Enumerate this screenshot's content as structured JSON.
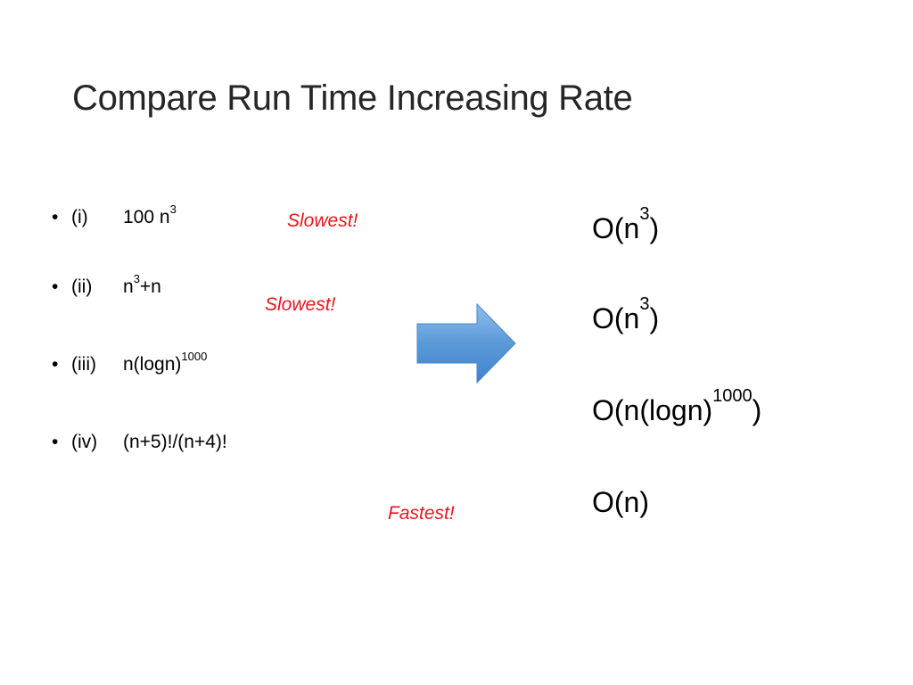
{
  "title": "Compare Run Time Increasing Rate",
  "items": [
    {
      "bullet": "•",
      "num": "(i)",
      "expr": "100 n",
      "sup": "3",
      "tail": ""
    },
    {
      "bullet": "•",
      "num": "(ii)",
      "expr": "n",
      "sup": "3",
      "tail": "+n"
    },
    {
      "bullet": "•",
      "num": "(iii)",
      "expr": "n(logn)",
      "sup": "1000",
      "tail": ""
    },
    {
      "bullet": "•",
      "num": "(iv)",
      "expr": "(n+5)!/(n+4)!",
      "sup": "",
      "tail": ""
    }
  ],
  "notes": [
    "Slowest!",
    "Slowest!",
    "Fastest!"
  ],
  "complexities": [
    {
      "base": "O(n",
      "sup": "3",
      "tail": ")"
    },
    {
      "base": "O(n",
      "sup": "3",
      "tail": ")"
    },
    {
      "base": "O(n(logn)",
      "sup": "1000",
      "tail": ")"
    },
    {
      "base": "O(n)",
      "sup": "",
      "tail": ""
    }
  ],
  "colors": {
    "accent_red": "#e8161c",
    "arrow_blue_light": "#7fb2e6",
    "arrow_blue_dark": "#3f82cc"
  },
  "icons": {
    "arrow": "right-arrow-icon"
  }
}
